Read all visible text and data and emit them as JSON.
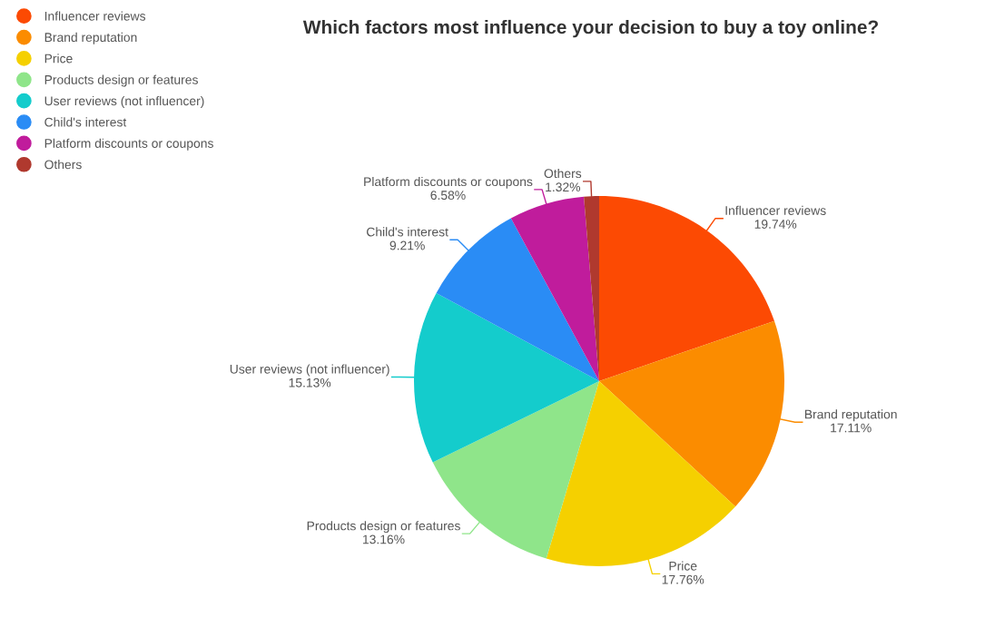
{
  "chart_data": {
    "type": "pie",
    "title": "Which factors most influence your decision to buy a toy online?",
    "categories": [
      "Influencer reviews",
      "Brand reputation",
      "Price",
      "Products design or features",
      "User reviews (not influencer)",
      "Child's interest",
      "Platform discounts or coupons",
      "Others"
    ],
    "values": [
      19.74,
      17.11,
      17.76,
      13.16,
      15.13,
      9.21,
      6.58,
      1.32
    ],
    "value_labels": [
      "19.74%",
      "17.11%",
      "17.76%",
      "13.16%",
      "15.13%",
      "9.21%",
      "6.58%",
      "1.32%"
    ],
    "colors": [
      "#fc4a03",
      "#fb8c00",
      "#f5d000",
      "#8fe58a",
      "#14cccc",
      "#2a8cf5",
      "#c01c9c",
      "#b0392e"
    ],
    "legend": "top left"
  }
}
